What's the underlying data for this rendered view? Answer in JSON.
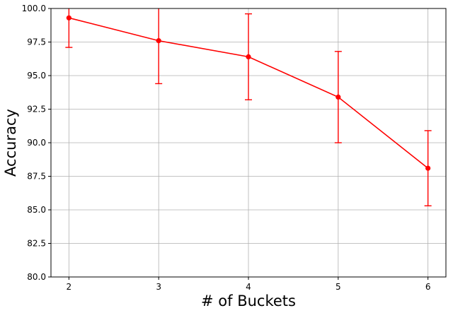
{
  "chart_data": {
    "type": "line",
    "title": "",
    "xlabel": "# of Buckets",
    "ylabel": "Accuracy",
    "x": [
      2,
      3,
      4,
      5,
      6
    ],
    "x_ticks": [
      "2",
      "3",
      "4",
      "5",
      "6"
    ],
    "xlim": [
      1.8,
      6.2
    ],
    "ylim": [
      80.0,
      100.0
    ],
    "y_ticks": [
      "80.0",
      "82.5",
      "85.0",
      "87.5",
      "90.0",
      "92.5",
      "95.0",
      "97.5",
      "100.0"
    ],
    "grid": true,
    "series": [
      {
        "values": [
          99.3,
          97.6,
          96.4,
          93.4,
          88.1
        ],
        "error_lower": [
          97.1,
          94.4,
          93.2,
          90.0,
          85.3
        ],
        "error_upper": [
          101.5,
          100.8,
          99.6,
          96.8,
          90.9
        ],
        "color": "#ff0000",
        "marker": "circle"
      }
    ]
  }
}
